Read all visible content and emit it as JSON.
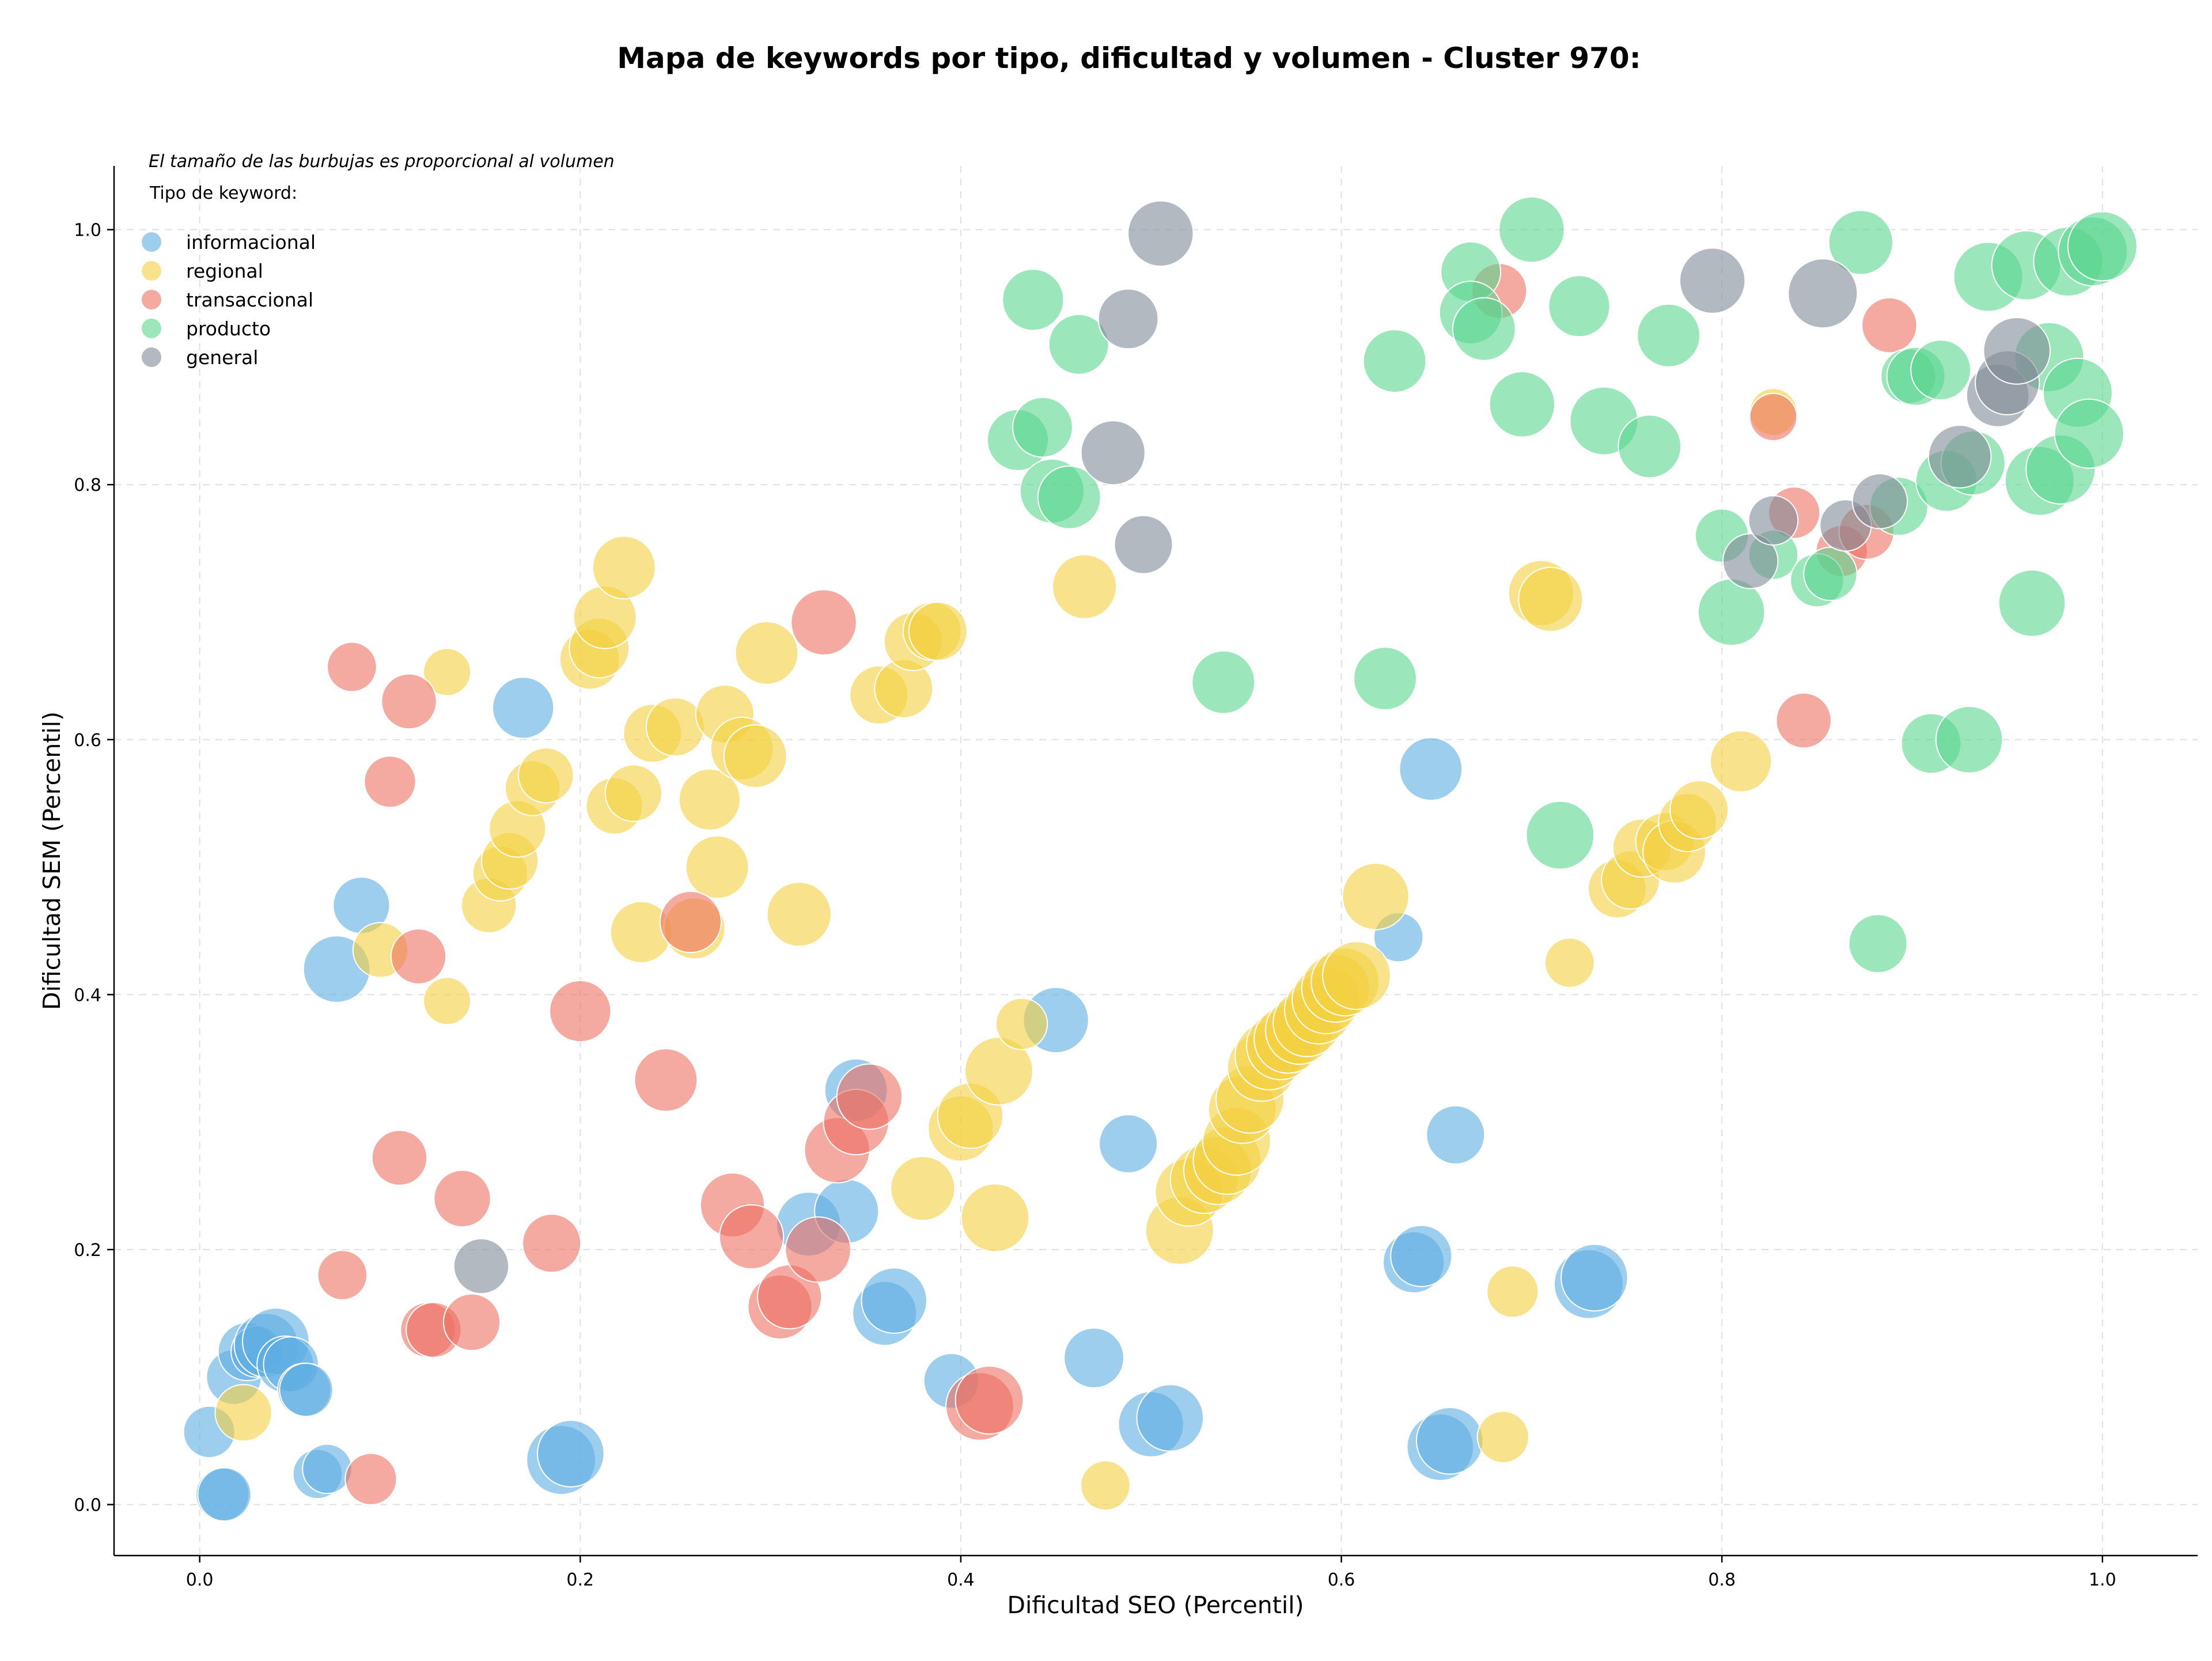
{
  "chart_data": {
    "type": "scatter",
    "title": "Mapa de keywords por tipo, dificultad y volumen - Cluster 970:",
    "xlabel": "Dificultad SEO (Percentil)",
    "ylabel": "Dificultad SEM (Percentil)",
    "xlim": [
      -0.045,
      1.05
    ],
    "ylim": [
      -0.04,
      1.05
    ],
    "x_ticks": [
      "0.0",
      "0.2",
      "0.4",
      "0.6",
      "0.8",
      "1.0"
    ],
    "y_ticks": [
      "0.0",
      "0.2",
      "0.4",
      "0.6",
      "0.8",
      "1.0"
    ],
    "grid": true,
    "note": "El tamaño de las burbujas es proporcional al volumen",
    "legend_title": "Tipo de keyword:",
    "legend_position": "top-left",
    "size_encoding": "bubble area proportional to volume (relative)",
    "series": [
      {
        "name": "informacional",
        "color": "#5DADE2",
        "points": [
          [
            0.005,
            0.057,
            0.4
          ],
          [
            0.012,
            0.008,
            0.45
          ],
          [
            0.013,
            0.008,
            0.45
          ],
          [
            0.018,
            0.1,
            0.5
          ],
          [
            0.025,
            0.12,
            0.6
          ],
          [
            0.03,
            0.12,
            0.4
          ],
          [
            0.035,
            0.125,
            0.8
          ],
          [
            0.04,
            0.128,
            0.9
          ],
          [
            0.045,
            0.11,
            0.55
          ],
          [
            0.048,
            0.11,
            0.5
          ],
          [
            0.055,
            0.09,
            0.45
          ],
          [
            0.056,
            0.09,
            0.45
          ],
          [
            0.062,
            0.024,
            0.35
          ],
          [
            0.067,
            0.028,
            0.35
          ],
          [
            0.072,
            0.42,
            0.9
          ],
          [
            0.085,
            0.47,
            0.55
          ],
          [
            0.17,
            0.625,
            0.7
          ],
          [
            0.19,
            0.035,
            1.0
          ],
          [
            0.195,
            0.04,
            0.9
          ],
          [
            0.32,
            0.22,
            0.8
          ],
          [
            0.34,
            0.23,
            0.8
          ],
          [
            0.345,
            0.325,
            0.75
          ],
          [
            0.36,
            0.15,
            0.8
          ],
          [
            0.365,
            0.16,
            0.85
          ],
          [
            0.395,
            0.097,
            0.5
          ],
          [
            0.45,
            0.38,
            0.85
          ],
          [
            0.47,
            0.115,
            0.65
          ],
          [
            0.488,
            0.283,
            0.6
          ],
          [
            0.5,
            0.063,
            0.85
          ],
          [
            0.51,
            0.068,
            0.9
          ],
          [
            0.63,
            0.445,
            0.35
          ],
          [
            0.638,
            0.19,
            0.7
          ],
          [
            0.642,
            0.195,
            0.7
          ],
          [
            0.647,
            0.577,
            0.75
          ],
          [
            0.652,
            0.045,
            0.9
          ],
          [
            0.657,
            0.05,
            0.9
          ],
          [
            0.66,
            0.29,
            0.6
          ],
          [
            0.73,
            0.173,
            1.0
          ],
          [
            0.733,
            0.178,
            0.9
          ]
        ]
      },
      {
        "name": "regional",
        "color": "#F4D03F",
        "points": [
          [
            0.023,
            0.072,
            0.55
          ],
          [
            0.095,
            0.435,
            0.5
          ],
          [
            0.13,
            0.395,
            0.3
          ],
          [
            0.13,
            0.653,
            0.3
          ],
          [
            0.152,
            0.47,
            0.5
          ],
          [
            0.158,
            0.495,
            0.5
          ],
          [
            0.163,
            0.505,
            0.55
          ],
          [
            0.167,
            0.53,
            0.55
          ],
          [
            0.175,
            0.562,
            0.5
          ],
          [
            0.182,
            0.572,
            0.5
          ],
          [
            0.205,
            0.663,
            0.65
          ],
          [
            0.21,
            0.672,
            0.65
          ],
          [
            0.213,
            0.696,
            0.75
          ],
          [
            0.218,
            0.548,
            0.55
          ],
          [
            0.223,
            0.735,
            0.75
          ],
          [
            0.228,
            0.558,
            0.55
          ],
          [
            0.232,
            0.449,
            0.7
          ],
          [
            0.238,
            0.605,
            0.6
          ],
          [
            0.25,
            0.61,
            0.6
          ],
          [
            0.26,
            0.452,
            0.7
          ],
          [
            0.268,
            0.553,
            0.7
          ],
          [
            0.272,
            0.5,
            0.75
          ],
          [
            0.276,
            0.62,
            0.6
          ],
          [
            0.285,
            0.593,
            0.75
          ],
          [
            0.292,
            0.587,
            0.75
          ],
          [
            0.298,
            0.668,
            0.75
          ],
          [
            0.315,
            0.463,
            0.8
          ],
          [
            0.357,
            0.635,
            0.6
          ],
          [
            0.37,
            0.64,
            0.6
          ],
          [
            0.375,
            0.677,
            0.6
          ],
          [
            0.385,
            0.685,
            0.6
          ],
          [
            0.388,
            0.685,
            0.6
          ],
          [
            0.38,
            0.248,
            0.8
          ],
          [
            0.4,
            0.295,
            0.85
          ],
          [
            0.405,
            0.305,
            0.85
          ],
          [
            0.418,
            0.225,
            0.95
          ],
          [
            0.42,
            0.34,
            0.95
          ],
          [
            0.432,
            0.377,
            0.4
          ],
          [
            0.465,
            0.72,
            0.8
          ],
          [
            0.476,
            0.015,
            0.35
          ],
          [
            0.515,
            0.215,
            0.95
          ],
          [
            0.52,
            0.245,
            0.95
          ],
          [
            0.528,
            0.255,
            0.95
          ],
          [
            0.535,
            0.262,
            0.95
          ],
          [
            0.54,
            0.27,
            0.95
          ],
          [
            0.545,
            0.285,
            0.95
          ],
          [
            0.548,
            0.31,
            0.95
          ],
          [
            0.552,
            0.318,
            0.95
          ],
          [
            0.558,
            0.343,
            0.95
          ],
          [
            0.562,
            0.352,
            0.95
          ],
          [
            0.568,
            0.36,
            0.95
          ],
          [
            0.572,
            0.365,
            0.95
          ],
          [
            0.578,
            0.372,
            0.95
          ],
          [
            0.582,
            0.378,
            0.95
          ],
          [
            0.588,
            0.388,
            0.95
          ],
          [
            0.592,
            0.396,
            0.95
          ],
          [
            0.597,
            0.405,
            0.95
          ],
          [
            0.602,
            0.41,
            0.95
          ],
          [
            0.608,
            0.415,
            0.95
          ],
          [
            0.618,
            0.477,
            0.9
          ],
          [
            0.685,
            0.053,
            0.4
          ],
          [
            0.69,
            0.167,
            0.4
          ],
          [
            0.705,
            0.715,
            0.85
          ],
          [
            0.71,
            0.71,
            0.8
          ],
          [
            0.72,
            0.425,
            0.35
          ],
          [
            0.745,
            0.483,
            0.6
          ],
          [
            0.752,
            0.49,
            0.6
          ],
          [
            0.758,
            0.515,
            0.6
          ],
          [
            0.77,
            0.52,
            0.6
          ],
          [
            0.775,
            0.512,
            0.75
          ],
          [
            0.782,
            0.535,
            0.6
          ],
          [
            0.788,
            0.545,
            0.6
          ],
          [
            0.81,
            0.583,
            0.7
          ],
          [
            0.827,
            0.857,
            0.3
          ]
        ]
      },
      {
        "name": "transaccional",
        "color": "#EC7063",
        "points": [
          [
            0.075,
            0.18,
            0.35
          ],
          [
            0.08,
            0.657,
            0.35
          ],
          [
            0.09,
            0.02,
            0.4
          ],
          [
            0.1,
            0.567,
            0.4
          ],
          [
            0.105,
            0.272,
            0.5
          ],
          [
            0.11,
            0.63,
            0.5
          ],
          [
            0.115,
            0.43,
            0.5
          ],
          [
            0.12,
            0.137,
            0.5
          ],
          [
            0.123,
            0.137,
            0.5
          ],
          [
            0.138,
            0.24,
            0.55
          ],
          [
            0.143,
            0.143,
            0.55
          ],
          [
            0.185,
            0.205,
            0.6
          ],
          [
            0.2,
            0.387,
            0.7
          ],
          [
            0.245,
            0.333,
            0.75
          ],
          [
            0.258,
            0.457,
            0.7
          ],
          [
            0.28,
            0.235,
            0.8
          ],
          [
            0.29,
            0.21,
            0.8
          ],
          [
            0.305,
            0.155,
            0.8
          ],
          [
            0.31,
            0.163,
            0.8
          ],
          [
            0.325,
            0.2,
            0.85
          ],
          [
            0.328,
            0.692,
            0.85
          ],
          [
            0.335,
            0.278,
            0.85
          ],
          [
            0.345,
            0.3,
            0.85
          ],
          [
            0.352,
            0.32,
            0.85
          ],
          [
            0.41,
            0.077,
            0.95
          ],
          [
            0.415,
            0.082,
            0.95
          ],
          [
            0.683,
            0.952,
            0.5
          ],
          [
            0.827,
            0.853,
            0.3
          ],
          [
            0.838,
            0.778,
            0.4
          ],
          [
            0.843,
            0.615,
            0.5
          ],
          [
            0.863,
            0.748,
            0.4
          ],
          [
            0.876,
            0.763,
            0.5
          ],
          [
            0.888,
            0.925,
            0.5
          ]
        ]
      },
      {
        "name": "producto",
        "color": "#58D68D",
        "points": [
          [
            0.43,
            0.835,
            0.7
          ],
          [
            0.438,
            0.945,
            0.7
          ],
          [
            0.443,
            0.845,
            0.65
          ],
          [
            0.448,
            0.795,
            0.8
          ],
          [
            0.457,
            0.79,
            0.75
          ],
          [
            0.462,
            0.91,
            0.65
          ],
          [
            0.538,
            0.645,
            0.75
          ],
          [
            0.623,
            0.648,
            0.75
          ],
          [
            0.628,
            0.897,
            0.75
          ],
          [
            0.668,
            0.967,
            0.65
          ],
          [
            0.668,
            0.935,
            0.75
          ],
          [
            0.675,
            0.922,
            0.75
          ],
          [
            0.695,
            0.863,
            0.85
          ],
          [
            0.7,
            1.0,
            0.85
          ],
          [
            0.715,
            0.525,
            0.95
          ],
          [
            0.725,
            0.94,
            0.7
          ],
          [
            0.738,
            0.85,
            0.95
          ],
          [
            0.762,
            0.83,
            0.75
          ],
          [
            0.772,
            0.917,
            0.75
          ],
          [
            0.8,
            0.76,
            0.45
          ],
          [
            0.805,
            0.7,
            0.9
          ],
          [
            0.827,
            0.745,
            0.35
          ],
          [
            0.85,
            0.725,
            0.45
          ],
          [
            0.857,
            0.73,
            0.45
          ],
          [
            0.873,
            0.99,
            0.8
          ],
          [
            0.882,
            0.44,
            0.6
          ],
          [
            0.893,
            0.783,
            0.6
          ],
          [
            0.898,
            0.885,
            0.5
          ],
          [
            0.902,
            0.885,
            0.6
          ],
          [
            0.915,
            0.89,
            0.65
          ],
          [
            0.91,
            0.597,
            0.65
          ],
          [
            0.918,
            0.803,
            0.7
          ],
          [
            0.93,
            0.6,
            0.9
          ],
          [
            0.932,
            0.817,
            0.8
          ],
          [
            0.94,
            0.963,
            1.0
          ],
          [
            0.96,
            0.972,
            1.0
          ],
          [
            0.963,
            0.707,
            0.9
          ],
          [
            0.967,
            0.803,
            1.0
          ],
          [
            0.972,
            0.9,
            1.0
          ],
          [
            0.978,
            0.812,
            1.0
          ],
          [
            0.982,
            0.975,
            1.0
          ],
          [
            0.987,
            0.872,
            1.0
          ],
          [
            0.993,
            0.84,
            1.0
          ],
          [
            0.995,
            0.983,
            1.0
          ],
          [
            1.0,
            0.987,
            1.0
          ]
        ]
      },
      {
        "name": "general",
        "color": "#808B96",
        "points": [
          [
            0.148,
            0.187,
            0.5
          ],
          [
            0.48,
            0.825,
            0.8
          ],
          [
            0.488,
            0.93,
            0.65
          ],
          [
            0.496,
            0.753,
            0.6
          ],
          [
            0.505,
            0.997,
            0.85
          ],
          [
            0.795,
            0.96,
            0.85
          ],
          [
            0.815,
            0.74,
            0.5
          ],
          [
            0.827,
            0.772,
            0.35
          ],
          [
            0.853,
            0.95,
            1.0
          ],
          [
            0.865,
            0.768,
            0.4
          ],
          [
            0.883,
            0.787,
            0.5
          ],
          [
            0.925,
            0.822,
            0.75
          ],
          [
            0.945,
            0.87,
            0.75
          ],
          [
            0.95,
            0.88,
            0.8
          ],
          [
            0.955,
            0.905,
            0.9
          ]
        ]
      }
    ]
  }
}
